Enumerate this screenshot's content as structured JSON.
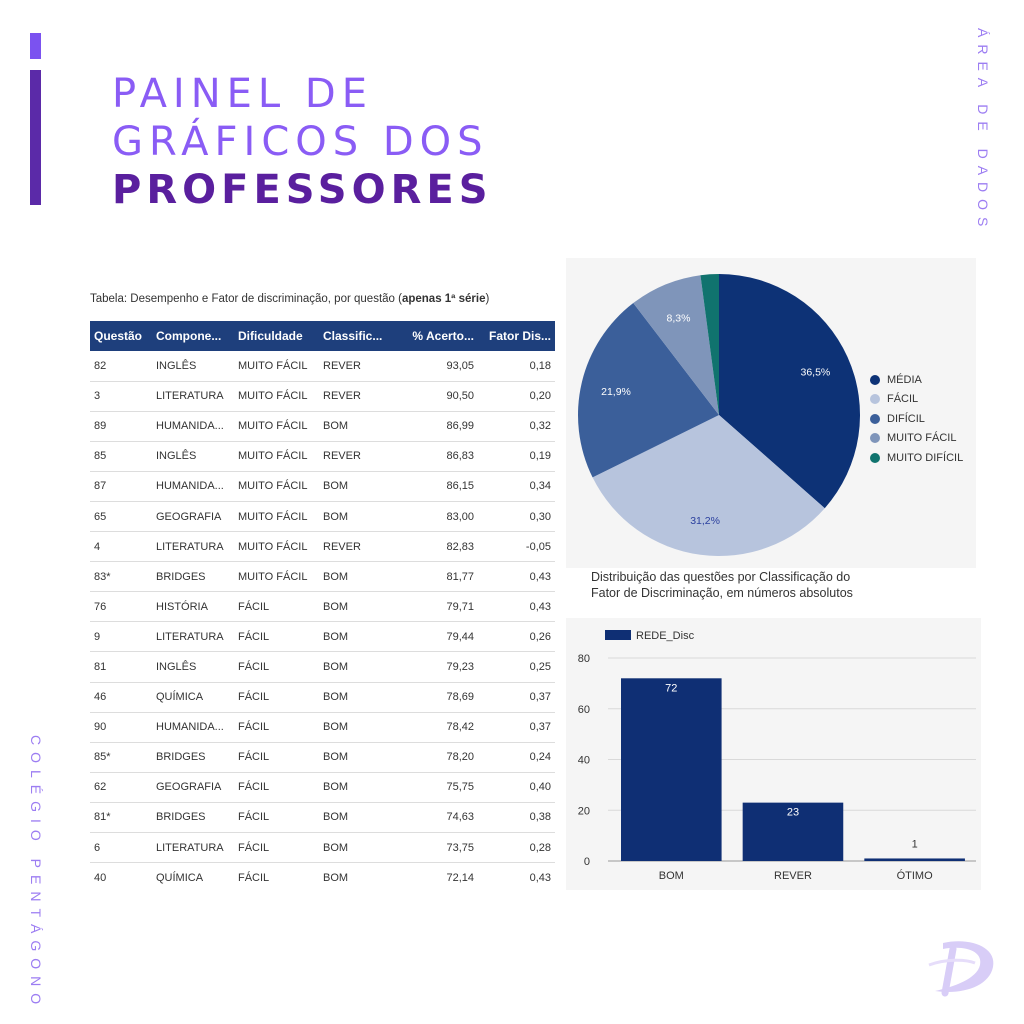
{
  "header": {
    "title_line1": "PAINEL DE",
    "title_line2": "GRÁFICOS DOS",
    "title_line3": "PROFESSORES",
    "side_right": "ÁREA DE DADOS",
    "side_left": "COLÉGIO PENTÁGONO"
  },
  "table": {
    "caption_prefix": "Tabela: Desempenho e Fator de discriminação, por questão (",
    "caption_bold": "apenas 1ª série",
    "caption_suffix": ")",
    "columns": [
      "Questão",
      "Compone...",
      "Dificuldade",
      "Classific...",
      "% Acerto...",
      "Fator Dis..."
    ],
    "rows": [
      [
        "82",
        "INGLÊS",
        "MUITO FÁCIL",
        "REVER",
        "93,05",
        "0,18"
      ],
      [
        "3",
        "LITERATURA",
        "MUITO FÁCIL",
        "REVER",
        "90,50",
        "0,20"
      ],
      [
        "89",
        "HUMANIDA...",
        "MUITO FÁCIL",
        "BOM",
        "86,99",
        "0,32"
      ],
      [
        "85",
        "INGLÊS",
        "MUITO FÁCIL",
        "REVER",
        "86,83",
        "0,19"
      ],
      [
        "87",
        "HUMANIDA...",
        "MUITO FÁCIL",
        "BOM",
        "86,15",
        "0,34"
      ],
      [
        "65",
        "GEOGRAFIA",
        "MUITO FÁCIL",
        "BOM",
        "83,00",
        "0,30"
      ],
      [
        "4",
        "LITERATURA",
        "MUITO FÁCIL",
        "REVER",
        "82,83",
        "-0,05"
      ],
      [
        "83*",
        "BRIDGES",
        "MUITO FÁCIL",
        "BOM",
        "81,77",
        "0,43"
      ],
      [
        "76",
        "HISTÓRIA",
        "FÁCIL",
        "BOM",
        "79,71",
        "0,43"
      ],
      [
        "9",
        "LITERATURA",
        "FÁCIL",
        "BOM",
        "79,44",
        "0,26"
      ],
      [
        "81",
        "INGLÊS",
        "FÁCIL",
        "BOM",
        "79,23",
        "0,25"
      ],
      [
        "46",
        "QUÍMICA",
        "FÁCIL",
        "BOM",
        "78,69",
        "0,37"
      ],
      [
        "90",
        "HUMANIDA...",
        "FÁCIL",
        "BOM",
        "78,42",
        "0,37"
      ],
      [
        "85*",
        "BRIDGES",
        "FÁCIL",
        "BOM",
        "78,20",
        "0,24"
      ],
      [
        "62",
        "GEOGRAFIA",
        "FÁCIL",
        "BOM",
        "75,75",
        "0,40"
      ],
      [
        "81*",
        "BRIDGES",
        "FÁCIL",
        "BOM",
        "74,63",
        "0,38"
      ],
      [
        "6",
        "LITERATURA",
        "FÁCIL",
        "BOM",
        "73,75",
        "0,28"
      ],
      [
        "40",
        "QUÍMICA",
        "FÁCIL",
        "BOM",
        "72,14",
        "0,43"
      ]
    ]
  },
  "bar_caption_line1": "Distribuição das questões por Classificação do",
  "bar_caption_line2": "Fator de Discriminação, em números absolutos",
  "colors": {
    "accent_light": "#8a5cf5",
    "accent_dark": "#5a1f9e",
    "table_header": "#1e3f7c",
    "bar": "#0f2f74"
  },
  "icons": {
    "logo": "pentagono-logo-icon"
  },
  "chart_data": [
    {
      "type": "pie",
      "labels": [
        "MÉDIA",
        "FÁCIL",
        "DIFÍCIL",
        "MUITO FÁCIL",
        "MUITO DIFÍCIL"
      ],
      "values": [
        36.5,
        31.2,
        21.9,
        8.3,
        2.1
      ],
      "data_labels": [
        "36,5%",
        "31,2%",
        "21,9%",
        "8,3%",
        ""
      ],
      "colors": [
        "#0d3276",
        "#b7c4dd",
        "#3b5f9a",
        "#7f95ba",
        "#10736e"
      ],
      "legend_position": "right"
    },
    {
      "type": "bar",
      "categories": [
        "BOM",
        "REVER",
        "ÓTIMO"
      ],
      "series": [
        {
          "name": "REDE_Disc",
          "values": [
            72,
            23,
            1
          ]
        }
      ],
      "ylim": [
        0,
        80
      ],
      "yticks": [
        0,
        20,
        40,
        60,
        80
      ],
      "grid": true,
      "legend_position": "top-left"
    }
  ]
}
